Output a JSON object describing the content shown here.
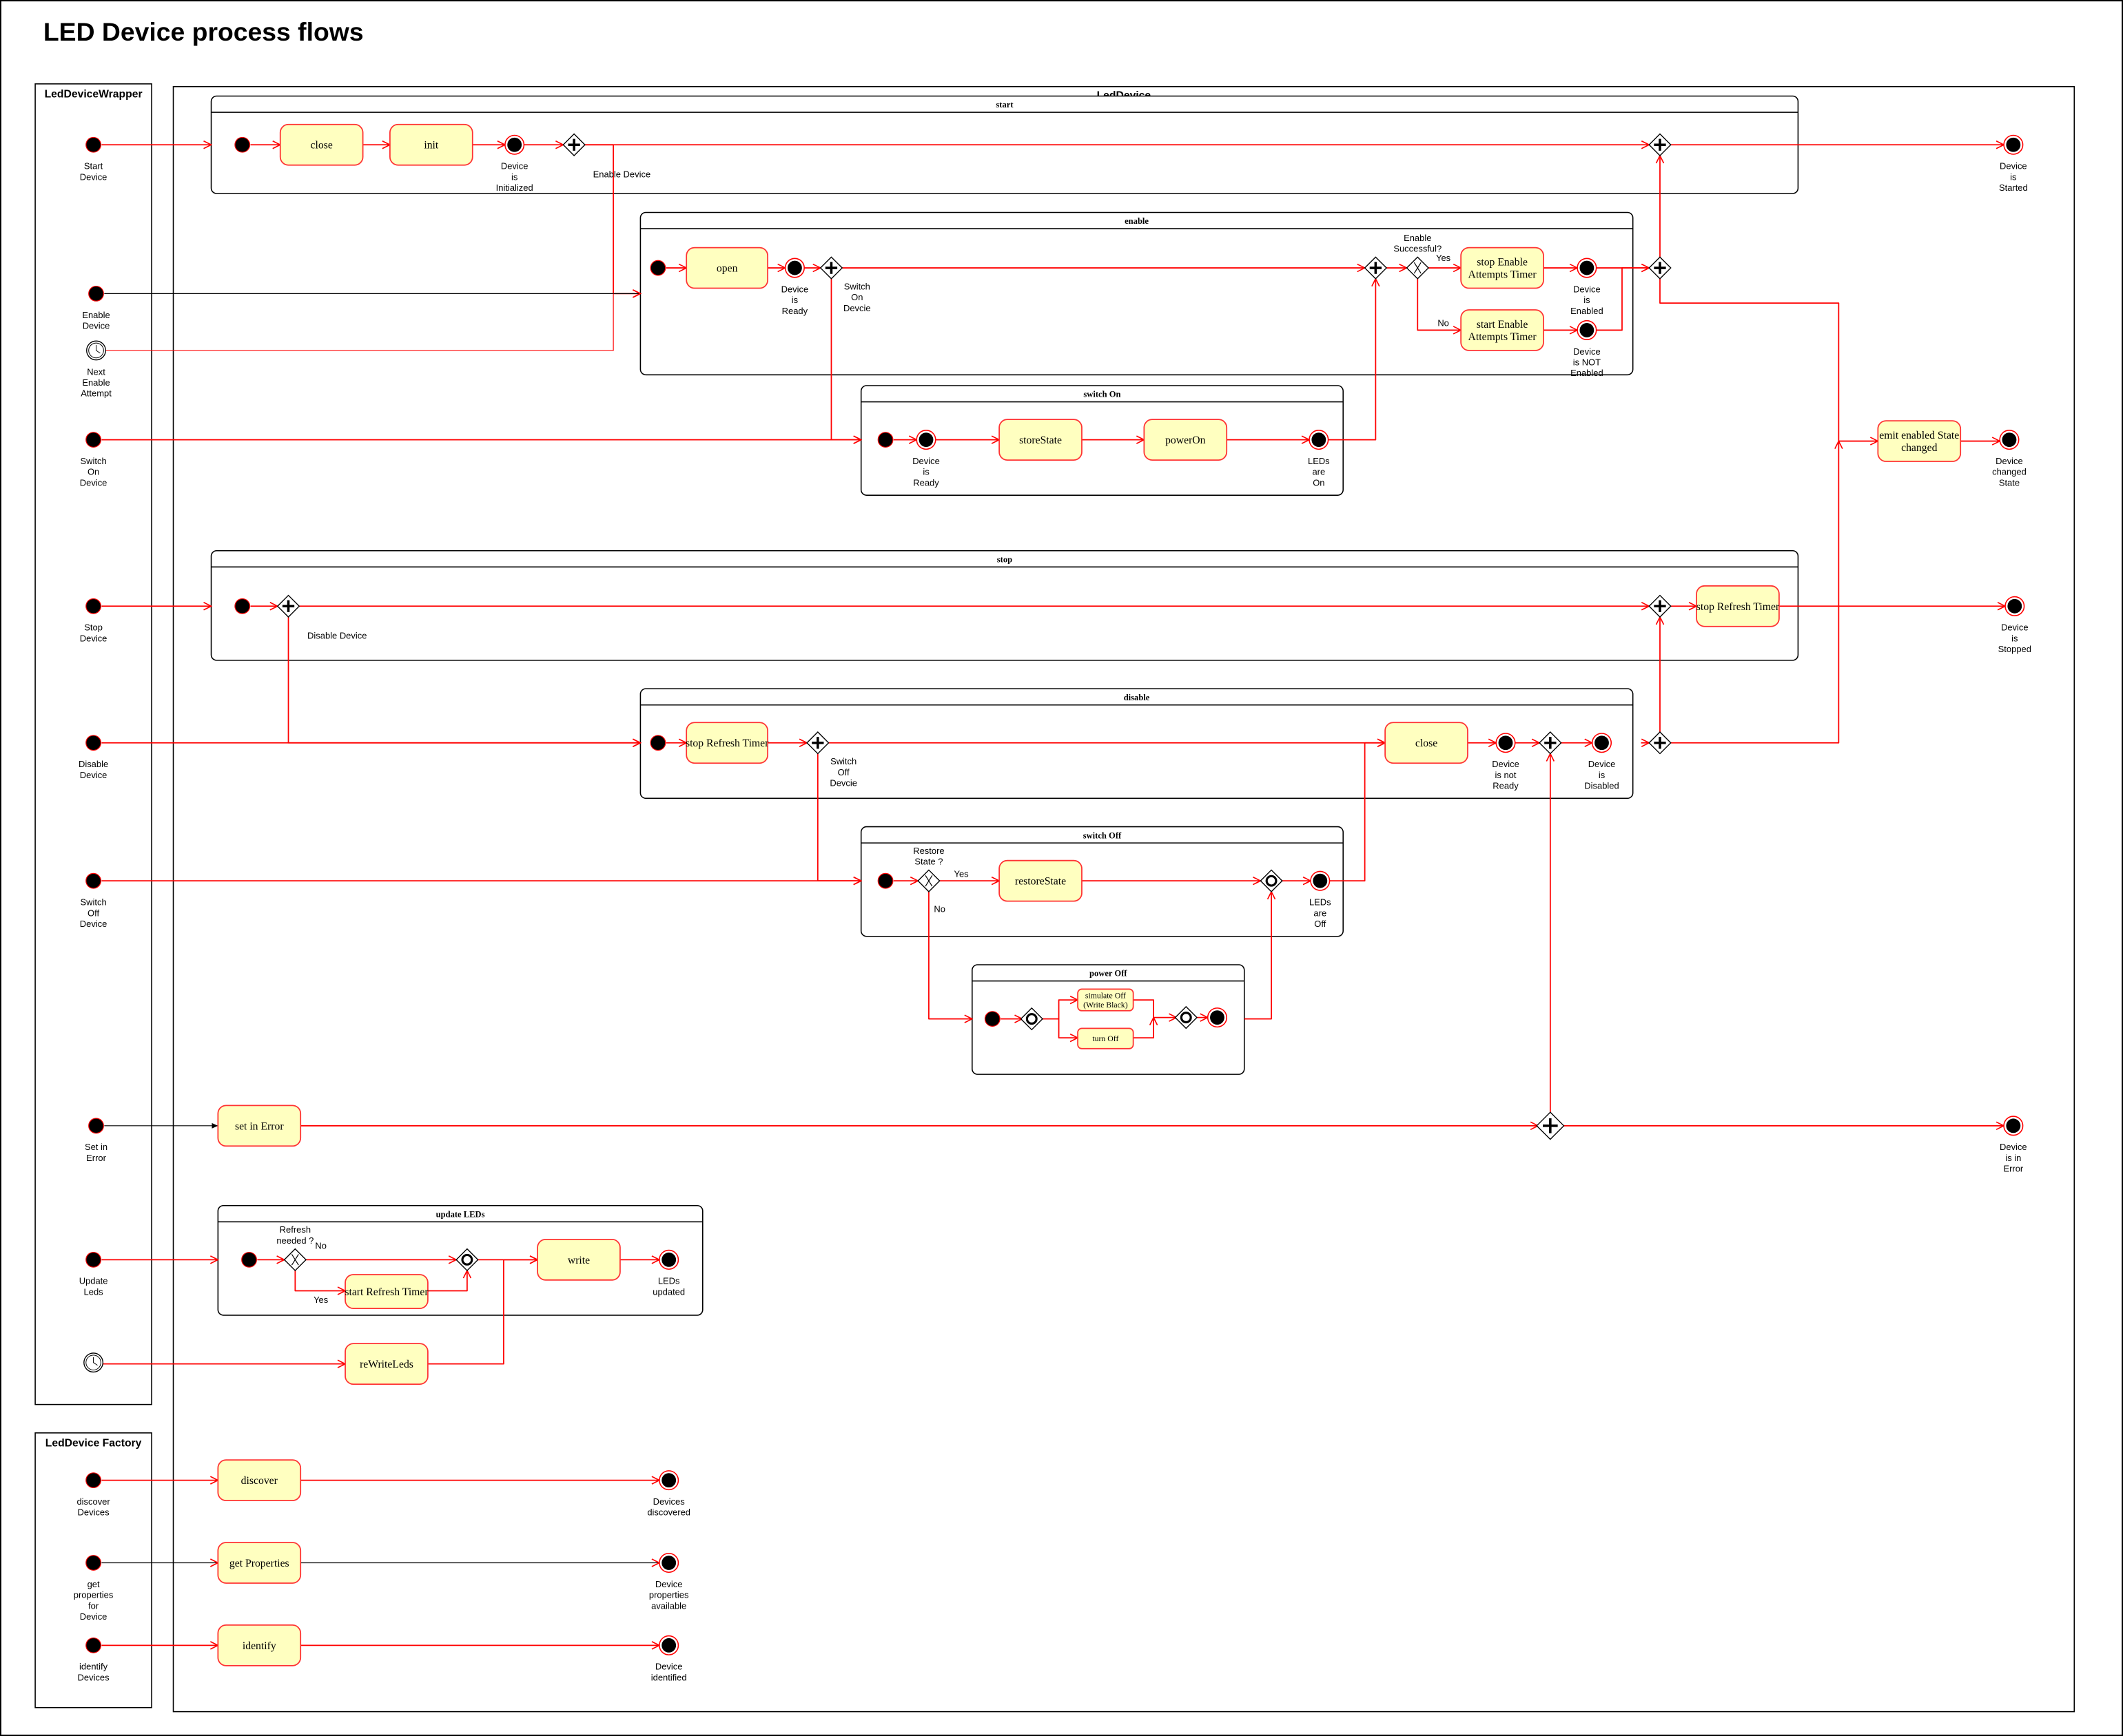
{
  "title": "LED Device process flows",
  "colors": {
    "flow": "#ff0000",
    "action_fill": "#ffffc0",
    "action_stroke": "#ff3333",
    "outline": "#000000"
  },
  "pools": {
    "wrapper": "LedDeviceWrapper",
    "device": "LedDevice",
    "factory": "LedDevice Factory"
  },
  "groups": {
    "start": "start",
    "enable": "enable",
    "switch_on": "switch On",
    "stop": "stop",
    "disable": "disable",
    "switch_off": "switch Off",
    "power_off": "power Off",
    "update_leds": "update LEDs"
  },
  "nodes": {
    "w_start": "Start\nDevice",
    "w_enable": "Enable\nDevice",
    "w_next_enable": "Next\nEnable\nAttempt",
    "w_switch_on": "Switch\nOn\nDevice",
    "w_stop": "Stop\nDevice",
    "w_disable": "Disable\nDevice",
    "w_switch_off": "Switch\nOff\nDevice",
    "w_error": "Set in\nError",
    "w_update": "Update\nLeds",
    "w_rewrite_timer": "",
    "f_discover": "discover\nDevices",
    "f_props": "get\nproperties\nfor\nDevice",
    "f_identify": "identify\nDevices",
    "s_init": "",
    "s_end_init": "Device\nis\nInitialized",
    "s_fork": "Enable Device",
    "s_join": "",
    "s_end_started": "Device\nis\nStarted",
    "e_init": "",
    "e_end_ready": "Device\nis\nReady",
    "e_fork": "Switch\nOn\nDevcie",
    "e_join": "",
    "e_xor": "Enable\nSuccessful?",
    "e_yes": "Yes",
    "e_no": "No",
    "e_end_enabled": "Device\nis\nEnabled",
    "e_end_not_enabled": "Device\nis NOT\nEnabled",
    "e_out_join": "",
    "on_init": "",
    "on_end_ready": "Device\nis\nReady",
    "on_end_leds_on": "LEDs\nare\nOn",
    "emit_end": "Device\nchanged\nState",
    "st_init": "",
    "st_fork": "Disable Device",
    "st_join": "",
    "st_end_stopped": "Device\nis\nStopped",
    "d_init": "",
    "d_fork": "Switch\nOff\nDevcie",
    "d_end_not_ready": "Device\nis not\nReady",
    "d_join": "",
    "d_end_disabled": "Device\nis\nDisabled",
    "d_out_join": "",
    "off_init": "",
    "off_xor": "Restore\nState ?",
    "off_yes": "Yes",
    "off_no": "No",
    "off_merge": "",
    "off_end_leds_off": "LEDs\nare\nOff",
    "po_init": "",
    "po_split": "",
    "po_merge": "",
    "po_end": "",
    "err_join": "",
    "err_end": "Device\nis in\nError",
    "u_init": "",
    "u_xor": "Refresh\nneeded ?",
    "u_no": "No",
    "u_yes": "Yes",
    "u_merge": "",
    "u_end": "LEDs\nupdated",
    "fd_end": "Devices\ndiscovered",
    "fp_end": "Device\nproperties\navailable",
    "fi_end": "Device\nidentified"
  },
  "actions": {
    "close_start": "close",
    "init": "init",
    "open": "open",
    "stop_enable_timer": "stop Enable\nAttempts Timer",
    "start_enable_timer": "start Enable\nAttempts Timer",
    "store_state": "storeState",
    "power_on": "powerOn",
    "emit_state": "emit enabled State\nchanged",
    "stop_refresh_stop": "stop Refresh Timer",
    "stop_refresh_disable": "stop Refresh Timer",
    "close_disable": "close",
    "restore_state": "restoreState",
    "simulate_off": "simulate Off\n(Write Black)",
    "turn_off": "turn Off",
    "set_error": "set in Error",
    "start_refresh_timer": "start Refresh Timer",
    "write": "write",
    "rewrite_leds": "reWriteLeds",
    "discover": "discover",
    "get_properties": "get Properties",
    "identify": "identify"
  }
}
